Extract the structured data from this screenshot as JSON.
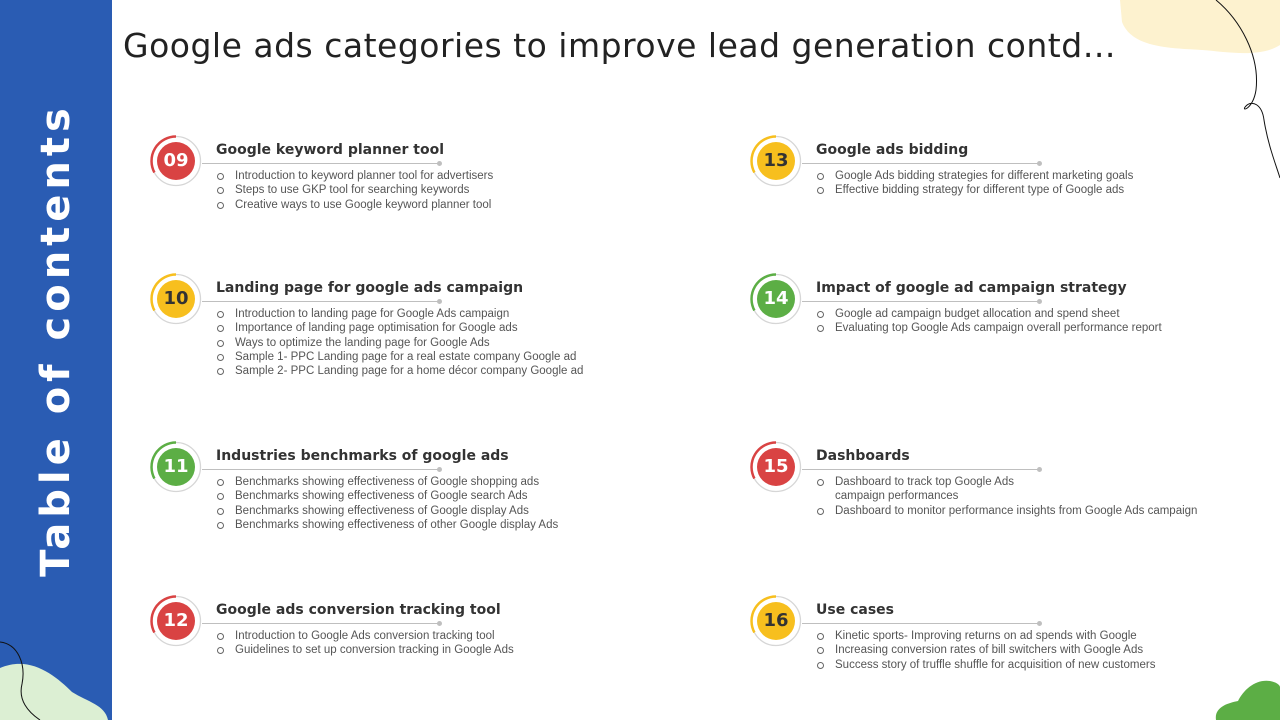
{
  "sidebar": {
    "title": "Table of contents"
  },
  "page": {
    "title": "Google ads categories to improve lead generation contd…"
  },
  "toc": [
    {
      "number": "09",
      "color": "#d94343",
      "heading": "Google keyword planner tool",
      "items": [
        "Introduction to keyword planner tool for advertisers",
        "Steps to use GKP tool for searching keywords",
        "Creative ways to use Google keyword planner tool"
      ]
    },
    {
      "number": "10",
      "color": "#f7bf1e",
      "heading": "Landing page for google ads campaign",
      "items": [
        "Introduction to landing page for Google Ads campaign",
        "Importance of landing page optimisation for Google ads",
        "Ways to optimize the landing page for Google Ads",
        "Sample 1- PPC Landing page for a real estate company Google ad",
        "Sample 2- PPC Landing page for a home décor company Google ad"
      ]
    },
    {
      "number": "11",
      "color": "#5cae45",
      "heading": "Industries benchmarks of google ads",
      "items": [
        "Benchmarks showing effectiveness of Google shopping ads",
        "Benchmarks showing effectiveness of Google search Ads",
        "Benchmarks showing effectiveness of Google display Ads",
        "Benchmarks showing effectiveness of other Google display Ads"
      ]
    },
    {
      "number": "12",
      "color": "#d94343",
      "heading": "Google ads conversion tracking tool",
      "items": [
        "Introduction to Google Ads conversion tracking tool",
        "Guidelines to set up conversion tracking in Google Ads"
      ]
    },
    {
      "number": "13",
      "color": "#f7bf1e",
      "heading": "Google ads bidding",
      "items": [
        "Google Ads bidding strategies for different marketing goals",
        "Effective bidding strategy for different type of Google ads"
      ]
    },
    {
      "number": "14",
      "color": "#5cae45",
      "heading": "Impact of google ad campaign strategy",
      "items": [
        "Google ad campaign budget allocation and spend sheet",
        "Evaluating top Google Ads campaign overall performance report"
      ]
    },
    {
      "number": "15",
      "color": "#d94343",
      "heading": "Dashboards",
      "items": [
        "Dashboard to track top Google Ads campaign performances",
        "Dashboard to monitor performance insights from Google Ads campaign"
      ]
    },
    {
      "number": "16",
      "color": "#f7bf1e",
      "heading": "Use cases",
      "items": [
        "Kinetic sports- Improving returns on ad spends with Google",
        "Increasing conversion rates of bill switchers with Google Ads",
        "Success story of truffle shuffle for acquisition of new customers"
      ]
    }
  ]
}
